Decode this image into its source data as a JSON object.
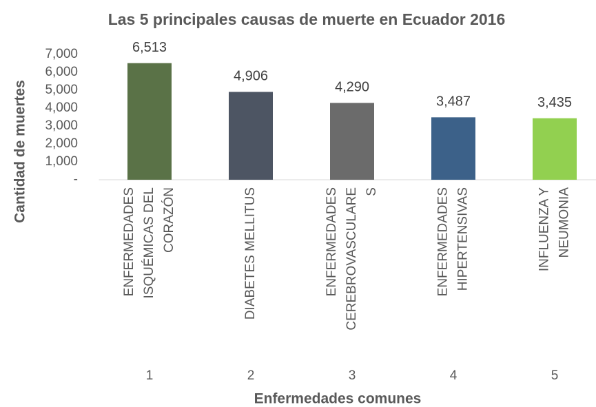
{
  "chart_data": {
    "type": "bar",
    "title": "Las 5 principales causas de muerte en Ecuador 2016",
    "y_label": "Cantidad de muertes",
    "x_label": "Enfermedades comunes",
    "categories": [
      "1",
      "2",
      "3",
      "4",
      "5"
    ],
    "category_names": [
      [
        "ENFERMEDADES",
        "ISQUÉMICAS DEL",
        "CORAZÓN"
      ],
      [
        "DIABETES MELLITUS"
      ],
      [
        "ENFERMEDADES",
        "CEREBROVASCULARE",
        "S"
      ],
      [
        "ENFERMEDADES",
        "HIPERTENSIVAS"
      ],
      [
        "INFLUENZA Y",
        "NEUMONIA"
      ]
    ],
    "values": [
      6513,
      4906,
      4290,
      3487,
      3435
    ],
    "value_labels": [
      "6,513",
      "4,906",
      "4,290",
      "3,487",
      "3,435"
    ],
    "colors": [
      "#5a7247",
      "#4d5563",
      "#6b6b6b",
      "#3c6189",
      "#92d050"
    ],
    "ylim": [
      0,
      7000
    ],
    "yticks": [
      {
        "value": 0,
        "label": "-"
      },
      {
        "value": 1000,
        "label": "1,000"
      },
      {
        "value": 2000,
        "label": "2,000"
      },
      {
        "value": 3000,
        "label": "3,000"
      },
      {
        "value": 4000,
        "label": "4,000"
      },
      {
        "value": 5000,
        "label": "5,000"
      },
      {
        "value": 6000,
        "label": "6,000"
      },
      {
        "value": 7000,
        "label": "7,000"
      }
    ],
    "grid": false
  }
}
